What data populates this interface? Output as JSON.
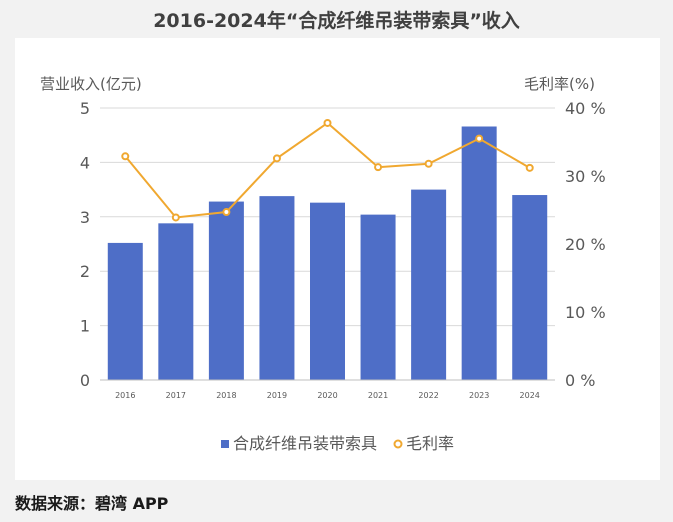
{
  "title": "2016-2024年“合成纤维吊装带索具”收入",
  "source": "数据来源：碧湾 APP",
  "chart_data": {
    "type": "bar",
    "categories": [
      "2016",
      "2017",
      "2018",
      "2019",
      "2020",
      "2021",
      "2022",
      "2023",
      "2024"
    ],
    "series": [
      {
        "name": "合成纤维吊装带索具",
        "type": "bar",
        "axis": "left",
        "color": "#4e6ec7",
        "values": [
          2.52,
          2.88,
          3.28,
          3.38,
          3.26,
          3.04,
          3.5,
          4.66,
          3.4
        ]
      },
      {
        "name": "毛利率",
        "type": "line",
        "axis": "right",
        "color": "#f0a830",
        "values": [
          32.9,
          23.9,
          24.7,
          32.6,
          37.8,
          31.3,
          31.8,
          35.5,
          31.2
        ]
      }
    ],
    "ylabel": "营业收入(亿元)",
    "y2label": "毛利率(%)",
    "ylim": [
      0,
      5
    ],
    "y2lim": [
      0,
      40
    ],
    "yticks": [
      "0",
      "1",
      "2",
      "3",
      "4",
      "5"
    ],
    "y2ticks": [
      "0 %",
      "10 %",
      "20 %",
      "30 %",
      "40 %"
    ],
    "grid": true,
    "legend": "bottom"
  }
}
